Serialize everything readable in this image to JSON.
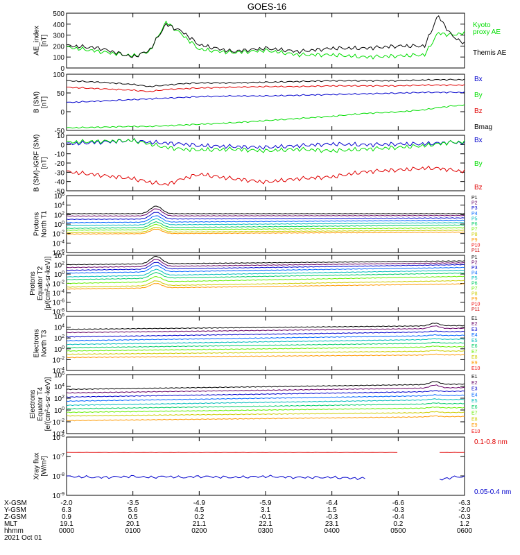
{
  "title": "GOES-16",
  "colors": {
    "black": "#000000",
    "red": "#e00000",
    "green": "#00dd00",
    "blue": "#0000cc",
    "p1": "#000000",
    "p2": "#660066",
    "p3": "#0000cc",
    "p4": "#0066ff",
    "p5": "#00bbbb",
    "p6": "#00cc66",
    "p7": "#66ee00",
    "p8": "#cccc00",
    "p9": "#ff9900",
    "p10": "#ee0000",
    "p11": "#cc0000"
  },
  "panels": [
    {
      "id": "ae",
      "ylabel": [
        "AE_index",
        "[nT]"
      ],
      "ticks": [
        "500",
        "400",
        "300",
        "200",
        "100",
        "0"
      ],
      "legend": [
        {
          "text": "Kyoto",
          "color": "#00dd00"
        },
        {
          "text": "proxy AE",
          "color": "#00dd00"
        },
        {
          "text": "Themis AE",
          "color": "#000000"
        }
      ]
    },
    {
      "id": "bsm",
      "ylabel": [
        "B (SM)",
        "[nT]"
      ],
      "ticks": [
        "100",
        "50",
        "0",
        "-50"
      ],
      "legend": [
        {
          "text": "Bx",
          "color": "#0000cc"
        },
        {
          "text": "By",
          "color": "#00dd00"
        },
        {
          "text": "Bz",
          "color": "#e00000"
        },
        {
          "text": "Bmag",
          "color": "#000000"
        }
      ]
    },
    {
      "id": "bigrf",
      "ylabel": [
        "B (SM)-IGRF (SM)",
        "[nT]"
      ],
      "ticks": [
        "10",
        "0",
        "-10",
        "-20",
        "-30",
        "-40",
        "-50"
      ],
      "legend": [
        {
          "text": "Bx",
          "color": "#0000cc"
        },
        {
          "text": "By",
          "color": "#00dd00"
        },
        {
          "text": "Bz",
          "color": "#e00000"
        }
      ]
    },
    {
      "id": "pn",
      "ylabel": [
        "Protons",
        "North T1"
      ],
      "ticks": [
        "10^6",
        "10^4",
        "10^2",
        "10^0",
        "10^-2",
        "10^-4",
        "10^-6"
      ],
      "channels": [
        "P1",
        "P2",
        "P3",
        "P4",
        "P5",
        "P6",
        "P7",
        "P8",
        "P9",
        "P10",
        "P11"
      ]
    },
    {
      "id": "pe",
      "ylabel": [
        "Protons",
        "Equator T2",
        "[p/(cm²-s-sr-keV)]"
      ],
      "ticks": [
        "10^4",
        "10^2",
        "10^0",
        "10^-2",
        "10^-4",
        "10^-6",
        "10^-8"
      ],
      "channels": [
        "P1",
        "P2",
        "P3",
        "P4",
        "P5",
        "P6",
        "P7",
        "P8",
        "P9",
        "P10",
        "P11"
      ]
    },
    {
      "id": "en",
      "ylabel": [
        "Electrons",
        "North T3"
      ],
      "ticks": [
        "10^6",
        "10^4",
        "10^2",
        "10^0",
        "10^-2",
        "10^-4"
      ],
      "channels": [
        "E1",
        "E2",
        "E3",
        "E4",
        "E5",
        "E6",
        "E7",
        "E8",
        "E9",
        "E10"
      ]
    },
    {
      "id": "ee",
      "ylabel": [
        "Electrons",
        "Equator T4",
        "[e/(cm²-s-sr-keV)]"
      ],
      "ticks": [
        "10^6",
        "10^4",
        "10^2",
        "10^0",
        "10^-2",
        "10^-4"
      ],
      "channels": [
        "E1",
        "E2",
        "E3",
        "E4",
        "E5",
        "E6",
        "E7",
        "E8",
        "E9",
        "E10"
      ]
    },
    {
      "id": "xray",
      "ylabel": [
        "Xray flux",
        "[W/m²]"
      ],
      "ticks": [
        "10^-6",
        "10^-7",
        "10^-8",
        "10^-9"
      ],
      "legend": [
        {
          "text": "0.1-0.8 nm",
          "color": "#e00000"
        },
        {
          "text": "0.05-0.4 nm",
          "color": "#0000cc"
        }
      ]
    }
  ],
  "xaxis": {
    "row_labels": [
      "X-GSM",
      "Y-GSM",
      "Z-GSM",
      "MLT",
      "hhmm"
    ],
    "date": "2021 Oct 01",
    "columns": [
      [
        "-2.0",
        "6.3",
        "0.9",
        "19.1",
        "0000"
      ],
      [
        "-3.5",
        "5.6",
        "0.5",
        "20.1",
        "0100"
      ],
      [
        "-4.9",
        "4.5",
        "0.2",
        "21.1",
        "0200"
      ],
      [
        "-5.9",
        "3.1",
        "-0.1",
        "22.1",
        "0300"
      ],
      [
        "-6.4",
        "1.5",
        "-0.3",
        "23.1",
        "0400"
      ],
      [
        "-6.6",
        "-0.3",
        "-0.4",
        "0.2",
        "0500"
      ],
      [
        "-6.3",
        "-2.0",
        "-0.3",
        "1.2",
        "0600"
      ]
    ]
  },
  "chart_data": {
    "type": "line",
    "title": "GOES-16",
    "x_hours": [
      0,
      0.5,
      1,
      1.25,
      1.5,
      1.75,
      2,
      2.5,
      3,
      3.5,
      4,
      4.5,
      5,
      5.4,
      5.6,
      5.8,
      6
    ],
    "series": [
      {
        "name": "Kyoto proxy AE",
        "panel": "ae",
        "values": [
          190,
          150,
          110,
          150,
          420,
          300,
          170,
          140,
          160,
          120,
          120,
          100,
          110,
          120,
          320,
          300,
          320
        ]
      },
      {
        "name": "Themis AE",
        "panel": "ae",
        "values": [
          205,
          180,
          100,
          160,
          400,
          330,
          210,
          150,
          180,
          150,
          180,
          180,
          200,
          200,
          480,
          300,
          220
        ]
      },
      {
        "name": "Bmag",
        "panel": "bsm",
        "values": [
          82,
          78,
          72,
          66,
          70,
          74,
          76,
          76,
          78,
          80,
          82,
          82,
          82,
          84,
          85,
          85,
          85
        ]
      },
      {
        "name": "Bz",
        "panel": "bsm",
        "values": [
          64,
          60,
          56,
          52,
          58,
          60,
          62,
          64,
          66,
          66,
          68,
          68,
          68,
          70,
          70,
          70,
          70
        ]
      },
      {
        "name": "Bx",
        "panel": "bsm",
        "values": [
          22,
          26,
          30,
          32,
          34,
          36,
          38,
          40,
          40,
          42,
          44,
          46,
          48,
          50,
          50,
          50,
          50
        ]
      },
      {
        "name": "By",
        "panel": "bsm",
        "values": [
          -48,
          -46,
          -44,
          -44,
          -42,
          -40,
          -38,
          -34,
          -28,
          -22,
          -16,
          -8,
          -4,
          2,
          8,
          12,
          15
        ]
      },
      {
        "name": "Bx",
        "panel": "bigrf",
        "values": [
          2,
          4,
          6,
          4,
          3,
          2,
          0,
          -1,
          -2,
          0,
          2,
          1,
          2,
          2,
          3,
          4,
          3
        ]
      },
      {
        "name": "By",
        "panel": "bigrf",
        "values": [
          4,
          5,
          6,
          2,
          -2,
          -4,
          -5,
          -4,
          -6,
          -4,
          -6,
          -4,
          -2,
          0,
          2,
          4,
          4
        ]
      },
      {
        "name": "Bz",
        "panel": "bigrf",
        "values": [
          -30,
          -34,
          -38,
          -42,
          -45,
          -38,
          -33,
          -38,
          -42,
          -38,
          -36,
          -30,
          -28,
          -26,
          -26,
          -28,
          -30
        ]
      },
      {
        "name": "0.1-0.8 nm",
        "panel": "xray",
        "values": [
          2e-07,
          2e-07,
          2e-07,
          2e-07,
          2e-07,
          2e-07,
          2e-07,
          2e-07,
          2e-07,
          2e-07,
          2e-07,
          2e-07,
          2e-07,
          null,
          2e-07,
          2e-07,
          2e-07
        ]
      },
      {
        "name": "0.05-0.4 nm",
        "panel": "xray",
        "values": [
          8e-09,
          7e-09,
          8e-09,
          7e-09,
          8e-09,
          7e-09,
          8e-09,
          7e-09,
          8e-09,
          7e-09,
          7e-09,
          6e-09,
          null,
          null,
          5e-09,
          7e-09,
          8e-09
        ]
      }
    ],
    "flux_channels": {
      "pn": {
        "channels": [
          "P1",
          "P2",
          "P3",
          "P4",
          "P5",
          "P6",
          "P7",
          "P8",
          "P9",
          "P10",
          "P11"
        ],
        "exp_at_start": [
          2.2,
          1.7,
          1.0,
          0.3,
          -0.3,
          -0.9,
          -1.3,
          -1.8,
          -2.1,
          -99,
          -99
        ],
        "exp_at_end": [
          2.2,
          1.8,
          1.3,
          0.8,
          0.3,
          -0.2,
          -0.8,
          -1.3,
          -1.7,
          -2.8,
          -99
        ]
      },
      "pe": {
        "channels": [
          "P1",
          "P2",
          "P3",
          "P4",
          "P5",
          "P6",
          "P7",
          "P8",
          "P9",
          "P10",
          "P11"
        ],
        "exp_at_start": [
          2.0,
          1.4,
          0.8,
          0.2,
          -0.6,
          -1.2,
          -2.0,
          -2.8,
          -3.2,
          -99,
          -99
        ],
        "exp_at_end": [
          2.8,
          2.4,
          2.0,
          1.4,
          0.8,
          0.2,
          -0.5,
          -1.4,
          -2.1,
          -99,
          -99
        ]
      },
      "en": {
        "channels": [
          "E1",
          "E2",
          "E3",
          "E4",
          "E5",
          "E6",
          "E7",
          "E8",
          "E9",
          "E10"
        ],
        "exp_at_start": [
          3.6,
          3.0,
          2.2,
          1.5,
          0.8,
          0.2,
          -0.4,
          -1.0,
          -1.6,
          -99
        ],
        "exp_at_end": [
          4.3,
          3.8,
          3.2,
          2.5,
          1.8,
          1.1,
          0.4,
          -0.4,
          -1.1,
          -99
        ]
      },
      "ee": {
        "channels": [
          "E1",
          "E2",
          "E3",
          "E4",
          "E5",
          "E6",
          "E7",
          "E8",
          "E9",
          "E10"
        ],
        "exp_at_start": [
          3.5,
          2.9,
          2.2,
          1.5,
          0.8,
          0.2,
          -0.4,
          -1.0,
          -1.8,
          -99
        ],
        "exp_at_end": [
          4.4,
          3.8,
          3.2,
          2.5,
          1.8,
          1.1,
          0.4,
          -0.4,
          -1.1,
          -99
        ]
      }
    },
    "xlim_hours": [
      0,
      6
    ],
    "ylims": {
      "ae": [
        0,
        500
      ],
      "bsm": [
        -55,
        100
      ],
      "bigrf": [
        -52,
        12
      ],
      "pn": [
        -6,
        6
      ],
      "pe": [
        -8,
        4
      ],
      "en": [
        -4,
        6
      ],
      "ee": [
        -4,
        6
      ],
      "xray": [
        -9.2,
        -5.8
      ]
    }
  }
}
